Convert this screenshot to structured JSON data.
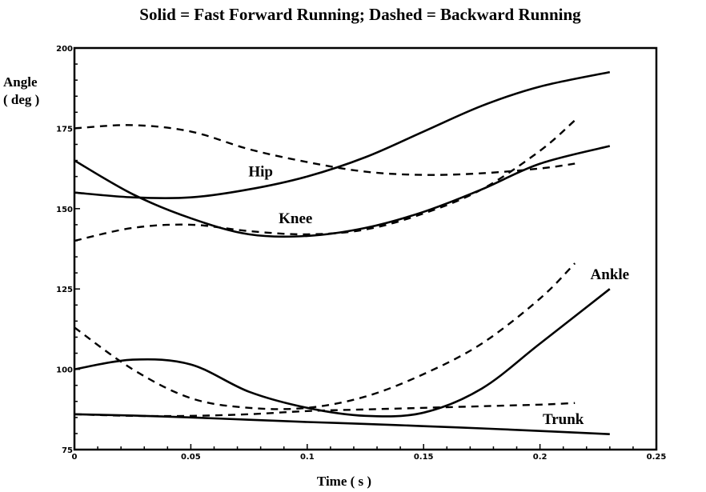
{
  "chart_data": {
    "type": "line",
    "title": "Solid = Fast Forward Running; Dashed = Backward Running",
    "xlabel": "Time ( s )",
    "ylabel_line1": "Angle",
    "ylabel_line2": "( deg )",
    "xlim": [
      0,
      0.25
    ],
    "ylim": [
      75,
      200
    ],
    "xticks": [
      0,
      0.05,
      0.1,
      0.15,
      0.2,
      0.25
    ],
    "xtick_labels": [
      "0",
      "0.05",
      "0.1",
      "0.15",
      "0.2",
      "0.25"
    ],
    "yticks": [
      75,
      100,
      125,
      150,
      175,
      200
    ],
    "ytick_labels": [
      "75",
      "100",
      "125",
      "150",
      "175",
      "200"
    ],
    "grid": false,
    "series": [
      {
        "style": "solid",
        "label": "Hip",
        "x": [
          0,
          0.025,
          0.05,
          0.075,
          0.1,
          0.125,
          0.15,
          0.175,
          0.2,
          0.23
        ],
        "y": [
          155,
          153.5,
          153.5,
          156,
          160,
          166,
          174,
          182,
          188,
          192.5
        ]
      },
      {
        "style": "dashed",
        "x": [
          0,
          0.025,
          0.05,
          0.075,
          0.1,
          0.125,
          0.15,
          0.175,
          0.2,
          0.215
        ],
        "y": [
          175,
          176,
          174,
          168.5,
          164.5,
          161.5,
          160.5,
          161,
          162.5,
          164
        ]
      },
      {
        "style": "solid",
        "label": "Knee",
        "x": [
          0,
          0.025,
          0.05,
          0.075,
          0.1,
          0.125,
          0.15,
          0.175,
          0.2,
          0.23
        ],
        "y": [
          165,
          154.5,
          147,
          142,
          141.5,
          144,
          149,
          156,
          164,
          169.5
        ]
      },
      {
        "style": "dashed",
        "x": [
          0,
          0.025,
          0.05,
          0.075,
          0.1,
          0.125,
          0.15,
          0.175,
          0.2,
          0.215
        ],
        "y": [
          140,
          144,
          145,
          143,
          142,
          143.5,
          148.5,
          156,
          168,
          177.5
        ]
      },
      {
        "style": "solid",
        "label": "Ankle",
        "x": [
          0,
          0.025,
          0.05,
          0.075,
          0.1,
          0.125,
          0.15,
          0.175,
          0.2,
          0.23
        ],
        "y": [
          100,
          103,
          101.5,
          93,
          88,
          85.5,
          86.5,
          94,
          108,
          125
        ]
      },
      {
        "style": "dashed",
        "x": [
          0,
          0.025,
          0.05,
          0.075,
          0.1,
          0.125,
          0.15,
          0.175,
          0.2,
          0.215
        ],
        "y": [
          113,
          100,
          91,
          88,
          88,
          91.5,
          98.5,
          108,
          122,
          133
        ]
      },
      {
        "style": "solid",
        "label": "Trunk",
        "x": [
          0,
          0.025,
          0.05,
          0.075,
          0.1,
          0.125,
          0.15,
          0.175,
          0.2,
          0.23
        ],
        "y": [
          86,
          85.6,
          85,
          84.3,
          83.6,
          83,
          82.3,
          81.6,
          80.8,
          79.8
        ]
      },
      {
        "style": "dashed",
        "x": [
          0,
          0.025,
          0.05,
          0.075,
          0.1,
          0.125,
          0.15,
          0.175,
          0.2,
          0.215
        ],
        "y": [
          86,
          85.5,
          85.5,
          86,
          87,
          87.5,
          88,
          88.5,
          89,
          89.5
        ]
      }
    ]
  }
}
